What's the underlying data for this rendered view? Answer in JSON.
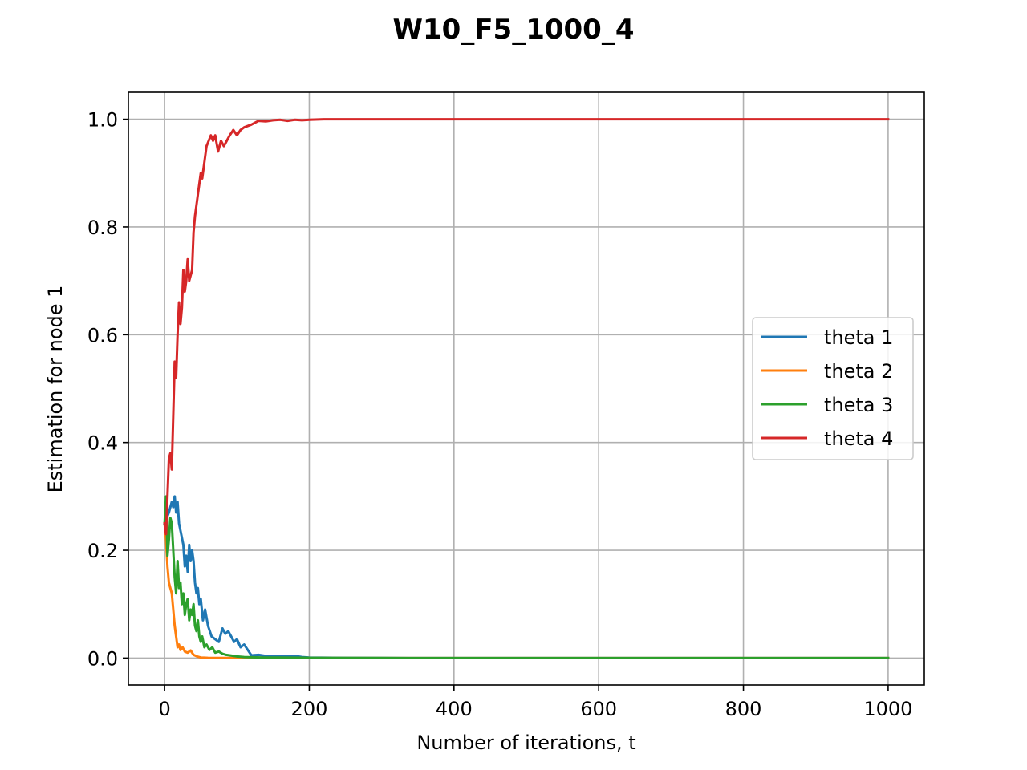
{
  "chart_data": {
    "type": "line",
    "title": "W10_F5_1000_4",
    "xlabel": "Number of iterations, t",
    "ylabel": "Estimation for node 1",
    "xlim": [
      -50,
      1050
    ],
    "ylim": [
      -0.05,
      1.05
    ],
    "xticks": [
      0,
      200,
      400,
      600,
      800,
      1000
    ],
    "xtick_labels": [
      "0",
      "200",
      "400",
      "600",
      "800",
      "1000"
    ],
    "yticks": [
      0.0,
      0.2,
      0.4,
      0.6,
      0.8,
      1.0
    ],
    "ytick_labels": [
      "0.0",
      "0.2",
      "0.4",
      "0.6",
      "0.8",
      "1.0"
    ],
    "grid": true,
    "legend_position": "center-right",
    "series": [
      {
        "name": "theta 1",
        "color": "#1f77b4",
        "x": [
          0,
          3,
          6,
          10,
          12,
          14,
          16,
          18,
          20,
          23,
          26,
          28,
          30,
          32,
          34,
          36,
          38,
          40,
          42,
          44,
          46,
          48,
          50,
          53,
          56,
          60,
          65,
          70,
          75,
          80,
          84,
          88,
          92,
          96,
          100,
          105,
          110,
          115,
          120,
          130,
          140,
          150,
          160,
          170,
          180,
          190,
          200,
          250,
          300,
          400,
          600,
          800,
          1000
        ],
        "y": [
          0.25,
          0.26,
          0.27,
          0.29,
          0.28,
          0.3,
          0.27,
          0.29,
          0.25,
          0.23,
          0.21,
          0.17,
          0.19,
          0.16,
          0.21,
          0.18,
          0.2,
          0.18,
          0.14,
          0.12,
          0.13,
          0.1,
          0.11,
          0.07,
          0.09,
          0.06,
          0.04,
          0.035,
          0.03,
          0.055,
          0.045,
          0.05,
          0.04,
          0.03,
          0.035,
          0.02,
          0.025,
          0.015,
          0.005,
          0.006,
          0.004,
          0.003,
          0.004,
          0.003,
          0.004,
          0.002,
          0.001,
          0.0005,
          0.0002,
          0.0,
          0.0,
          0.0,
          0.0
        ]
      },
      {
        "name": "theta 2",
        "color": "#ff7f0e",
        "x": [
          0,
          2,
          4,
          6,
          8,
          10,
          12,
          14,
          16,
          18,
          20,
          22,
          25,
          28,
          32,
          36,
          40,
          45,
          50,
          60,
          70,
          80,
          100,
          150,
          200,
          400,
          600,
          800,
          1000
        ],
        "y": [
          0.25,
          0.22,
          0.17,
          0.14,
          0.13,
          0.12,
          0.09,
          0.06,
          0.04,
          0.02,
          0.025,
          0.015,
          0.02,
          0.012,
          0.01,
          0.014,
          0.006,
          0.003,
          0.001,
          0.0005,
          0.0003,
          0.0002,
          0.0001,
          0.0,
          0.0,
          0.0,
          0.0,
          0.0,
          0.0
        ]
      },
      {
        "name": "theta 3",
        "color": "#2ca02c",
        "x": [
          0,
          2,
          4,
          6,
          8,
          10,
          12,
          14,
          16,
          18,
          20,
          22,
          24,
          26,
          28,
          30,
          32,
          34,
          36,
          38,
          40,
          42,
          44,
          46,
          48,
          50,
          52,
          55,
          58,
          62,
          66,
          70,
          75,
          80,
          85,
          90,
          100,
          110,
          120,
          140,
          160,
          200,
          300,
          400,
          600,
          800,
          1000
        ],
        "y": [
          0.25,
          0.3,
          0.19,
          0.22,
          0.26,
          0.25,
          0.2,
          0.15,
          0.12,
          0.18,
          0.13,
          0.14,
          0.1,
          0.12,
          0.08,
          0.1,
          0.11,
          0.07,
          0.09,
          0.08,
          0.1,
          0.06,
          0.05,
          0.07,
          0.04,
          0.03,
          0.04,
          0.02,
          0.025,
          0.015,
          0.02,
          0.01,
          0.012,
          0.008,
          0.006,
          0.005,
          0.003,
          0.002,
          0.0015,
          0.001,
          0.001,
          0.0005,
          0.0002,
          0.0,
          0.0,
          0.0,
          0.0
        ]
      },
      {
        "name": "theta 4",
        "color": "#d62728",
        "x": [
          0,
          2,
          4,
          6,
          8,
          10,
          12,
          14,
          16,
          18,
          20,
          22,
          24,
          26,
          28,
          30,
          32,
          34,
          36,
          38,
          40,
          42,
          44,
          46,
          48,
          50,
          52,
          55,
          58,
          61,
          64,
          67,
          70,
          74,
          78,
          82,
          86,
          90,
          95,
          100,
          105,
          110,
          120,
          130,
          140,
          150,
          160,
          170,
          180,
          190,
          200,
          220,
          250,
          300,
          400,
          600,
          800,
          1000
        ],
        "y": [
          0.25,
          0.23,
          0.3,
          0.37,
          0.38,
          0.35,
          0.45,
          0.55,
          0.52,
          0.6,
          0.66,
          0.62,
          0.65,
          0.72,
          0.68,
          0.7,
          0.74,
          0.7,
          0.71,
          0.72,
          0.79,
          0.82,
          0.84,
          0.86,
          0.88,
          0.9,
          0.89,
          0.92,
          0.95,
          0.96,
          0.97,
          0.96,
          0.97,
          0.94,
          0.96,
          0.95,
          0.96,
          0.97,
          0.98,
          0.97,
          0.98,
          0.985,
          0.99,
          0.997,
          0.996,
          0.998,
          0.999,
          0.997,
          0.999,
          0.998,
          0.999,
          1.0,
          1.0,
          1.0,
          1.0,
          1.0,
          1.0,
          1.0
        ]
      }
    ]
  }
}
